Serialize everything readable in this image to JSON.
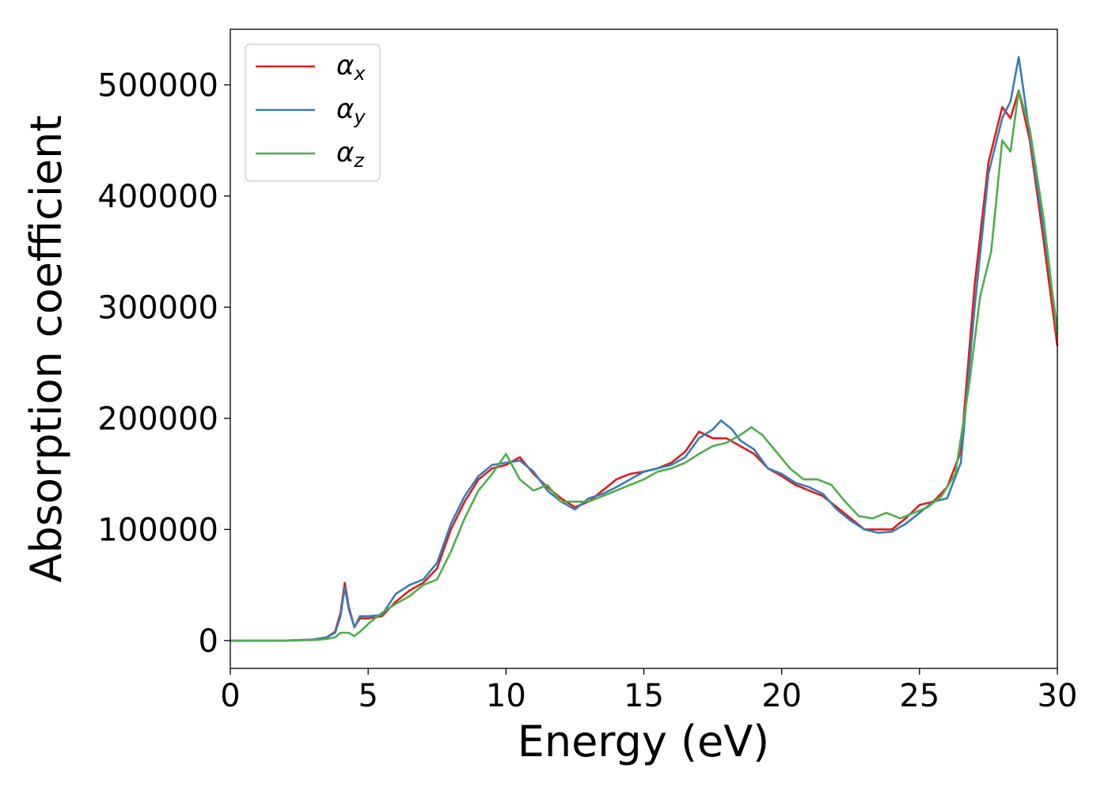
{
  "chart_data": {
    "type": "line",
    "title": "",
    "xlabel": "Energy (eV)",
    "ylabel": "Absorption coefficient",
    "xlim": [
      0,
      30
    ],
    "ylim": [
      -25000,
      550000
    ],
    "xticks": [
      0,
      5,
      10,
      15,
      20,
      25,
      30
    ],
    "yticks": [
      0,
      100000,
      200000,
      300000,
      400000,
      500000
    ],
    "grid": false,
    "legend_position": "top-left",
    "series": [
      {
        "name": "α_x",
        "symbol": "α",
        "sub": "x",
        "color": "#e41a1c",
        "x": [
          0,
          2,
          3,
          3.5,
          3.8,
          4.0,
          4.15,
          4.3,
          4.5,
          4.7,
          5.0,
          5.5,
          6.0,
          6.5,
          7.0,
          7.5,
          8.0,
          8.5,
          9.0,
          9.5,
          10.0,
          10.5,
          11.0,
          11.5,
          12.0,
          12.5,
          13.0,
          13.5,
          14.0,
          14.5,
          15.0,
          15.5,
          16.0,
          16.5,
          17.0,
          17.5,
          18.0,
          18.5,
          19.0,
          19.5,
          20.0,
          20.5,
          21.0,
          21.5,
          22.0,
          22.5,
          23.0,
          23.5,
          24.0,
          24.5,
          25.0,
          25.5,
          26.0,
          26.5,
          27.0,
          27.5,
          28.0,
          28.3,
          28.6,
          29.0,
          29.5,
          30.0
        ],
        "y": [
          0,
          0,
          1000,
          3000,
          8000,
          25000,
          52000,
          30000,
          12000,
          20000,
          20000,
          22000,
          35000,
          45000,
          52000,
          65000,
          100000,
          125000,
          145000,
          155000,
          158000,
          165000,
          150000,
          138000,
          128000,
          120000,
          125000,
          135000,
          145000,
          150000,
          152000,
          155000,
          160000,
          170000,
          188000,
          182000,
          182000,
          175000,
          168000,
          155000,
          148000,
          140000,
          135000,
          130000,
          120000,
          110000,
          100000,
          100000,
          100000,
          110000,
          122000,
          125000,
          138000,
          170000,
          320000,
          430000,
          480000,
          470000,
          495000,
          450000,
          360000,
          265000
        ]
      },
      {
        "name": "α_y",
        "symbol": "α",
        "sub": "y",
        "color": "#377eb8",
        "x": [
          0,
          2,
          3,
          3.5,
          3.8,
          4.0,
          4.15,
          4.3,
          4.5,
          4.7,
          5.0,
          5.5,
          6.0,
          6.5,
          7.0,
          7.5,
          8.0,
          8.5,
          9.0,
          9.5,
          10.0,
          10.5,
          11.0,
          11.5,
          12.0,
          12.5,
          13.0,
          13.5,
          14.0,
          14.5,
          15.0,
          15.5,
          16.0,
          16.5,
          17.0,
          17.5,
          17.8,
          18.2,
          18.5,
          19.0,
          19.5,
          20.0,
          20.5,
          21.0,
          21.5,
          22.0,
          22.5,
          23.0,
          23.5,
          24.0,
          24.5,
          25.0,
          25.5,
          26.0,
          26.5,
          27.0,
          27.5,
          28.0,
          28.3,
          28.6,
          29.0,
          29.5,
          30.0
        ],
        "y": [
          0,
          0,
          1000,
          3000,
          7000,
          22000,
          48000,
          28000,
          12000,
          22000,
          22000,
          23000,
          42000,
          50000,
          55000,
          70000,
          105000,
          130000,
          148000,
          158000,
          160000,
          162000,
          152000,
          135000,
          125000,
          118000,
          128000,
          132000,
          138000,
          145000,
          152000,
          155000,
          158000,
          165000,
          182000,
          190000,
          198000,
          190000,
          180000,
          172000,
          155000,
          150000,
          142000,
          138000,
          132000,
          118000,
          108000,
          100000,
          97000,
          98000,
          105000,
          115000,
          125000,
          128000,
          160000,
          300000,
          420000,
          470000,
          485000,
          525000,
          455000,
          370000,
          280000
        ]
      },
      {
        "name": "α_z",
        "symbol": "α",
        "sub": "z",
        "color": "#4daf4a",
        "x": [
          0,
          2,
          3,
          3.5,
          3.8,
          4.0,
          4.3,
          4.5,
          4.8,
          5.0,
          5.5,
          6.0,
          6.5,
          7.0,
          7.5,
          8.0,
          8.5,
          9.0,
          9.5,
          10.0,
          10.5,
          11.0,
          11.5,
          12.0,
          12.5,
          13.0,
          13.5,
          14.0,
          14.5,
          15.0,
          15.5,
          16.0,
          16.5,
          17.0,
          17.5,
          18.0,
          18.5,
          18.9,
          19.3,
          19.8,
          20.3,
          20.8,
          21.3,
          21.8,
          22.3,
          22.8,
          23.3,
          23.8,
          24.3,
          24.8,
          25.3,
          25.8,
          26.3,
          26.8,
          27.2,
          27.6,
          28.0,
          28.3,
          28.6,
          29.0,
          29.5,
          30.0
        ],
        "y": [
          0,
          0,
          500,
          1500,
          3000,
          7000,
          7000,
          4000,
          10000,
          15000,
          25000,
          33000,
          40000,
          50000,
          55000,
          80000,
          110000,
          135000,
          150000,
          168000,
          145000,
          135000,
          140000,
          125000,
          125000,
          125000,
          130000,
          135000,
          140000,
          145000,
          152000,
          155000,
          160000,
          168000,
          175000,
          178000,
          185000,
          192000,
          185000,
          170000,
          155000,
          145000,
          145000,
          140000,
          125000,
          112000,
          110000,
          115000,
          110000,
          115000,
          120000,
          130000,
          150000,
          230000,
          310000,
          350000,
          450000,
          440000,
          495000,
          460000,
          380000,
          275000
        ]
      }
    ]
  }
}
